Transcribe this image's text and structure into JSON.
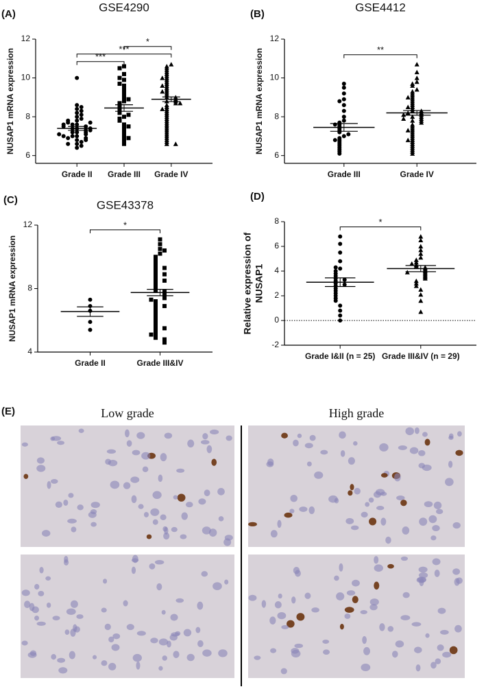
{
  "chart_data": [
    {
      "type": "dot",
      "panel_label": "(A)",
      "title": "GSE4290",
      "ylabel": [
        "NUSAP1 mRNA expression"
      ],
      "categories": [
        "Grade II",
        "Grade III",
        "Grade IV"
      ],
      "groups": [
        {
          "marker": "circle",
          "mean": 7.4,
          "sem": 0.1,
          "values": [
            7.0,
            7.2,
            7.4,
            7.6,
            7.8,
            6.6,
            6.8,
            7.0,
            7.2,
            7.4,
            7.6,
            8.0,
            8.2,
            8.4,
            8.6,
            6.4,
            6.5,
            6.7,
            6.9,
            7.1,
            7.3,
            7.5,
            7.7,
            7.9,
            8.1,
            6.6,
            6.9,
            7.2,
            7.5,
            7.8,
            8.3,
            10.0,
            7.0,
            7.3,
            7.6,
            6.8,
            7.1,
            7.4,
            7.7,
            8.5
          ]
        },
        {
          "marker": "square",
          "mean": 8.45,
          "sem": 0.17,
          "values": [
            10.6,
            10.5,
            10.2,
            9.9,
            9.6,
            9.4,
            9.2,
            9.0,
            8.8,
            8.7,
            8.6,
            8.5,
            8.4,
            8.3,
            8.2,
            8.0,
            7.9,
            7.8,
            7.6,
            7.4,
            7.2,
            7.0,
            6.8,
            6.6,
            9.7,
            8.9,
            8.1,
            7.5,
            6.9,
            10.0
          ]
        },
        {
          "marker": "triangle",
          "mean": 8.9,
          "sem": 0.12,
          "values": [
            10.7,
            10.6,
            10.5,
            10.4,
            10.3,
            10.2,
            10.1,
            10.0,
            9.9,
            9.8,
            9.7,
            9.6,
            9.5,
            9.4,
            9.3,
            9.2,
            9.1,
            9.0,
            9.0,
            8.9,
            8.8,
            8.8,
            8.7,
            8.6,
            8.5,
            8.4,
            8.3,
            8.2,
            8.1,
            8.0,
            7.9,
            7.8,
            7.7,
            7.6,
            7.5,
            7.4,
            7.3,
            7.2,
            7.1,
            7.0,
            6.9,
            6.8,
            6.7,
            6.6,
            9.3,
            9.6,
            8.7,
            8.4,
            10.0,
            6.6
          ]
        }
      ],
      "ylim": [
        5.6,
        12
      ],
      "yticks": [
        6,
        8,
        10,
        12
      ],
      "comparisons": [
        {
          "groups": [
            0,
            1
          ],
          "label": "***"
        },
        {
          "groups": [
            0,
            2
          ],
          "label": "***"
        },
        {
          "groups": [
            1,
            2
          ],
          "label": "*"
        }
      ]
    },
    {
      "type": "dot",
      "panel_label": "(B)",
      "title": "GSE4412",
      "ylabel": [
        "NUSAP1 mRNA expression"
      ],
      "categories": [
        "Grade III",
        "Grade IV"
      ],
      "groups": [
        {
          "marker": "circle",
          "mean": 7.45,
          "sem": 0.2,
          "values": [
            9.7,
            9.5,
            9.2,
            8.9,
            8.6,
            8.3,
            8.0,
            7.8,
            7.7,
            7.6,
            7.5,
            7.4,
            7.3,
            7.2,
            7.0,
            6.9,
            6.8,
            6.7,
            6.6,
            6.5,
            6.4,
            6.3,
            6.2,
            6.1,
            7.1,
            7.6,
            6.8,
            8.8
          ]
        },
        {
          "marker": "triangle",
          "mean": 8.2,
          "sem": 0.12,
          "values": [
            10.7,
            10.3,
            10.0,
            9.8,
            9.7,
            9.6,
            9.4,
            9.3,
            9.2,
            9.1,
            9.0,
            8.9,
            8.8,
            8.7,
            8.6,
            8.5,
            8.4,
            8.3,
            8.3,
            8.2,
            8.2,
            8.1,
            8.0,
            8.0,
            7.9,
            7.8,
            7.8,
            7.7,
            7.6,
            7.5,
            7.4,
            7.3,
            7.2,
            7.1,
            7.0,
            6.9,
            6.8,
            6.7,
            6.6,
            6.5,
            6.4,
            6.3,
            6.2,
            6.1,
            8.5,
            8.1,
            7.9,
            9.0,
            7.3,
            6.8
          ]
        }
      ],
      "ylim": [
        5.6,
        12
      ],
      "yticks": [
        6,
        8,
        10,
        12
      ],
      "comparisons": [
        {
          "groups": [
            0,
            1
          ],
          "label": "**"
        }
      ]
    },
    {
      "type": "dot",
      "panel_label": "(C)",
      "title": "GSE43378",
      "ylabel": [
        "NUSAP1 mRNA expression"
      ],
      "categories": [
        "Grade II",
        "Grade III&IV"
      ],
      "groups": [
        {
          "marker": "circle",
          "mean": 6.55,
          "sem": 0.3,
          "values": [
            7.3,
            6.9,
            6.6,
            5.9,
            5.4
          ]
        },
        {
          "marker": "square",
          "mean": 7.75,
          "sem": 0.2,
          "values": [
            11.1,
            10.8,
            10.5,
            10.2,
            10.0,
            9.8,
            9.6,
            9.4,
            9.2,
            9.0,
            8.8,
            8.6,
            8.4,
            8.2,
            8.0,
            7.9,
            7.8,
            7.7,
            7.6,
            7.5,
            7.4,
            7.2,
            7.0,
            6.8,
            6.6,
            6.4,
            6.2,
            6.0,
            5.8,
            5.6,
            5.4,
            5.2,
            5.0,
            4.9,
            4.8,
            4.7,
            4.6,
            8.9,
            8.5,
            9.3,
            7.3,
            6.9,
            5.5,
            5.1,
            10.4
          ]
        }
      ],
      "ylim": [
        4,
        12
      ],
      "yticks": [
        4,
        8,
        12
      ],
      "comparisons": [
        {
          "groups": [
            0,
            1
          ],
          "label": "*"
        }
      ]
    },
    {
      "type": "dot",
      "panel_label": "(D)",
      "ylabel": [
        "Relative expression of",
        "NUSAP1"
      ],
      "categories": [
        "Grade I&II (n = 25)",
        "Grade III&IV (n = 29)"
      ],
      "groups": [
        {
          "marker": "circle",
          "mean": 3.1,
          "sem": 0.35,
          "values": [
            6.8,
            6.2,
            5.5,
            4.8,
            4.2,
            4.0,
            3.8,
            3.6,
            3.4,
            3.2,
            3.0,
            2.8,
            2.6,
            2.4,
            2.2,
            2.0,
            1.8,
            1.6,
            1.2,
            0.8,
            0.4,
            0.0,
            3.3,
            2.9,
            4.3
          ]
        },
        {
          "marker": "triangle",
          "mean": 4.2,
          "sem": 0.25,
          "values": [
            6.8,
            6.5,
            6.0,
            5.7,
            5.4,
            5.1,
            4.9,
            4.7,
            4.5,
            4.4,
            4.3,
            4.2,
            4.1,
            4.0,
            3.9,
            3.8,
            3.7,
            3.6,
            3.5,
            3.4,
            3.2,
            3.0,
            2.8,
            2.5,
            2.1,
            1.6,
            0.7,
            4.6,
            3.9
          ]
        }
      ],
      "ylim": [
        -2,
        8
      ],
      "yticks": [
        -2,
        0,
        2,
        4,
        6,
        8
      ],
      "reference_line": 0,
      "comparisons": [
        {
          "groups": [
            0,
            1
          ],
          "label": "*"
        }
      ]
    }
  ],
  "panel_e": {
    "label": "(E)",
    "columns": [
      "Low grade",
      "High grade"
    ]
  }
}
